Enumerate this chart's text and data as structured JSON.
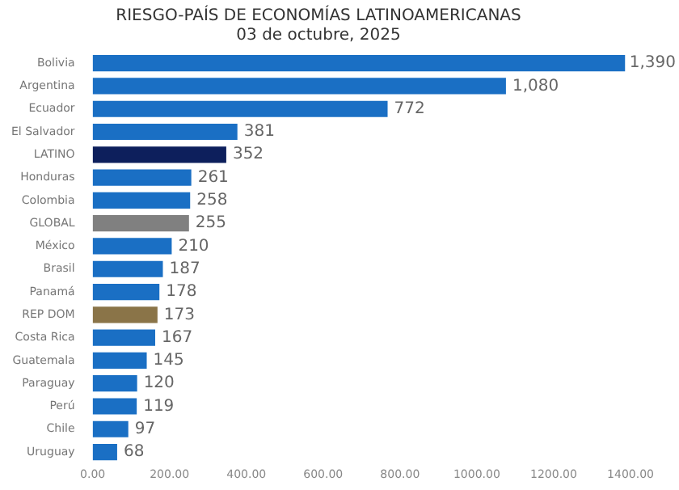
{
  "chart_data": {
    "type": "bar",
    "orientation": "horizontal",
    "title": "RIESGO-PAÍS DE ECONOMÍAS LATINOAMERICANAS",
    "subtitle": "03 de octubre, 2025",
    "categories": [
      "Bolivia",
      "Argentina",
      "Ecuador",
      "El Salvador",
      "LATINO",
      "Honduras",
      "Colombia",
      "GLOBAL",
      "México",
      "Brasil",
      "Panamá",
      "REP DOM",
      "Costa Rica",
      "Guatemala",
      "Paraguay",
      "Perú",
      "Chile",
      "Uruguay"
    ],
    "values": [
      1390,
      1080,
      772,
      381,
      352,
      261,
      258,
      255,
      210,
      187,
      178,
      173,
      167,
      145,
      120,
      119,
      97,
      68
    ],
    "colors": [
      "#1a6fc4",
      "#1a6fc4",
      "#1a6fc4",
      "#1a6fc4",
      "#0d1f5c",
      "#1a6fc4",
      "#1a6fc4",
      "#808080",
      "#1a6fc4",
      "#1a6fc4",
      "#1a6fc4",
      "#8a7448",
      "#1a6fc4",
      "#1a6fc4",
      "#1a6fc4",
      "#1a6fc4",
      "#1a6fc4",
      "#1a6fc4"
    ],
    "value_labels": [
      "1,390",
      "1,080",
      "772",
      "381",
      "352",
      "261",
      "258",
      "255",
      "210",
      "187",
      "178",
      "173",
      "167",
      "145",
      "120",
      "119",
      "97",
      "68"
    ],
    "xlim": [
      0,
      1400
    ],
    "xticks": [
      {
        "value": 0,
        "label": "0.00"
      },
      {
        "value": 200,
        "label": "200.00"
      },
      {
        "value": 400,
        "label": "400.00"
      },
      {
        "value": 600,
        "label": "600.00"
      },
      {
        "value": 800,
        "label": "800.00"
      },
      {
        "value": 1000,
        "label": "1000.00"
      },
      {
        "value": 1200,
        "label": "1200.00"
      },
      {
        "value": 1400,
        "label": "1400.00"
      }
    ],
    "grid": false,
    "legend": false
  }
}
